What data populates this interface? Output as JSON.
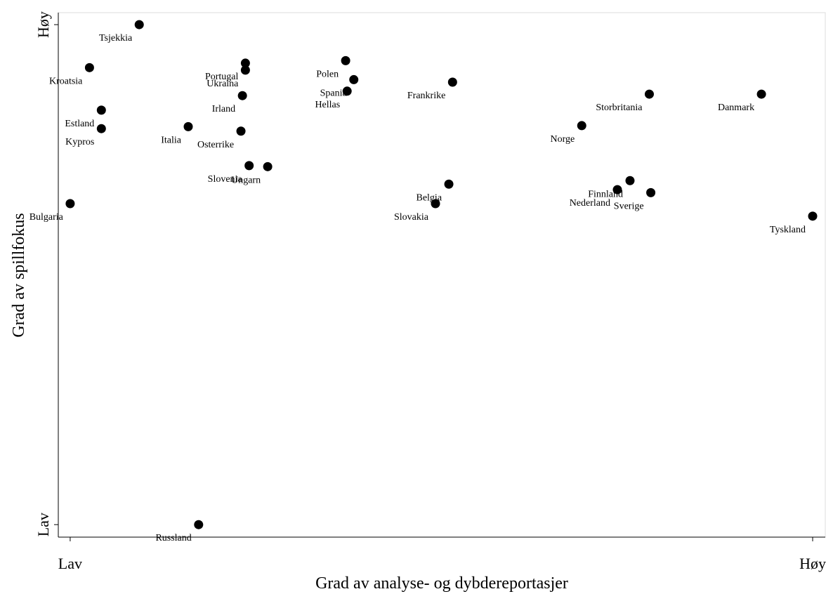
{
  "chart_data": {
    "type": "scatter",
    "x_label": "Grad av analyse- og dybdereportasjer",
    "y_label": "Grad av spillfokus",
    "point_labels": [
      "Tsjekkia",
      "Kroatsia",
      "Portugal",
      "Ukraina",
      "Irland",
      "Polen",
      "Spania",
      "Hellas",
      "Frankrike",
      "Storbritania",
      "Danmark",
      "Estland",
      "Kypros",
      "Italia",
      "Osterrike",
      "Norge",
      "Slovenia",
      "Ungarn",
      "Belgia",
      "Slovakia",
      "Finnland",
      "Nederland",
      "Sverige",
      "Tyskland",
      "Bulgaria",
      "Russland"
    ],
    "x": [
      9.3,
      2.6,
      23.6,
      23.6,
      23.2,
      37.1,
      38.2,
      37.3,
      51.5,
      78.0,
      93.1,
      4.2,
      4.2,
      15.9,
      23.0,
      68.9,
      24.1,
      26.6,
      51.0,
      49.2,
      75.4,
      73.7,
      78.2,
      100,
      0,
      17.3
    ],
    "values": [
      100,
      91.4,
      92.3,
      90.9,
      85.8,
      92.8,
      89.0,
      86.7,
      88.5,
      86.1,
      86.1,
      82.9,
      79.2,
      79.6,
      78.7,
      79.8,
      71.8,
      71.6,
      68.1,
      64.2,
      68.8,
      67.0,
      66.4,
      61.7,
      64.2,
      0
    ],
    "color": "#000000",
    "xlim": [
      -1.6,
      101.7
    ],
    "ylim": [
      -2.5,
      102.4
    ],
    "xticks": [
      {
        "value": 0,
        "label": "Lav"
      },
      {
        "value": 100,
        "label": "Høy"
      }
    ],
    "yticks": [
      {
        "value": 0,
        "label": "Lav"
      },
      {
        "value": 100,
        "label": "Høy"
      }
    ]
  }
}
